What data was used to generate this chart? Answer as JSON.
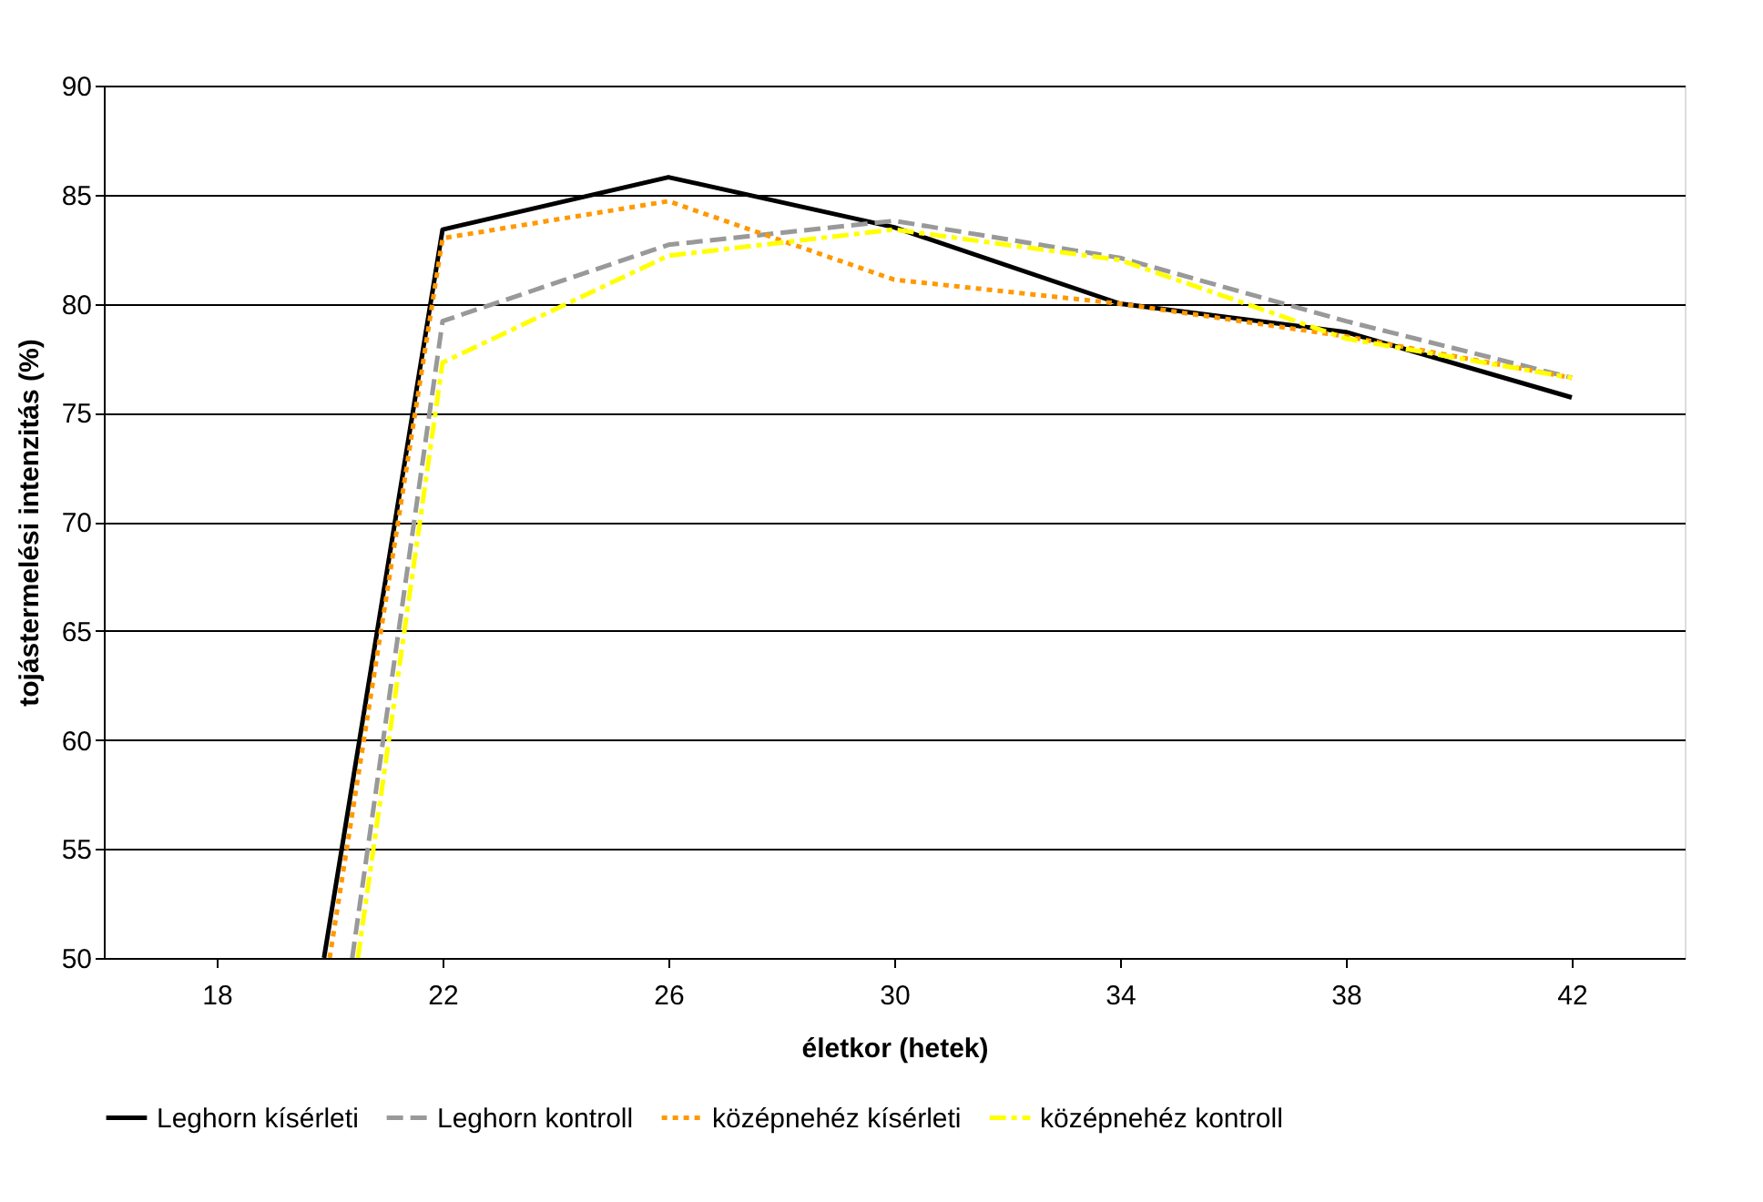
{
  "chart_data": {
    "type": "line",
    "xlabel": "életkor (hetek)",
    "ylabel": "tojástermelési intenzitás (%)",
    "series": [
      {
        "name": "Leghorn kísérleti",
        "color": "#000000",
        "line_style": "solid",
        "x": [
          19.9,
          22,
          26,
          30,
          34,
          38,
          42
        ],
        "values": [
          50,
          83.4,
          85.8,
          83.5,
          80.0,
          78.7,
          75.7
        ]
      },
      {
        "name": "Leghorn kontroll",
        "color": "#999999",
        "line_style": "dashed",
        "x": [
          20.4,
          22,
          26,
          30,
          34,
          38,
          42
        ],
        "values": [
          50,
          79.2,
          82.7,
          83.8,
          82.1,
          79.2,
          76.6
        ]
      },
      {
        "name": "középnehéz kísérleti",
        "color": "#ff9900",
        "line_style": "dotted",
        "x": [
          20.0,
          22,
          26,
          30,
          34,
          38,
          42
        ],
        "values": [
          50,
          83.0,
          84.7,
          81.1,
          80.0,
          78.5,
          76.6
        ]
      },
      {
        "name": "középnehéz kontroll",
        "color": "#ffff00",
        "line_style": "dashdot",
        "x": [
          20.5,
          22,
          26,
          30,
          34,
          38,
          42
        ],
        "values": [
          50,
          77.3,
          82.2,
          83.4,
          82.0,
          78.4,
          76.6
        ]
      }
    ],
    "xlim": [
      16,
      44
    ],
    "xticks": [
      18,
      22,
      26,
      30,
      34,
      38,
      42
    ],
    "ylim": [
      50,
      90
    ],
    "yticks": [
      50,
      55,
      60,
      65,
      70,
      75,
      80,
      85,
      90
    ],
    "grid": "y",
    "legend": "bottom",
    "marker": "none"
  }
}
